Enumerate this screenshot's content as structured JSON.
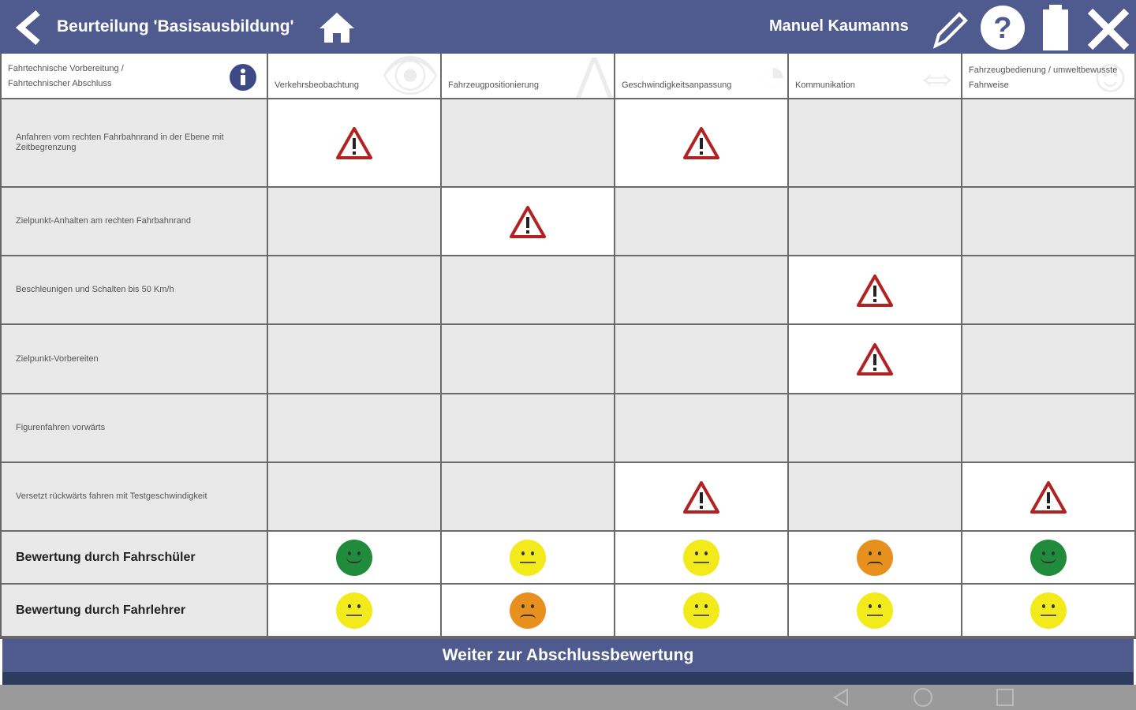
{
  "header": {
    "title": "Beurteilung 'Basisausbildung'",
    "user": "Manuel Kaumanns",
    "icons": [
      "back-icon",
      "home-icon",
      "pencil-icon",
      "help-icon",
      "battery-icon",
      "close-icon"
    ]
  },
  "table": {
    "corner_label": "Fahrtechnische Vorbereitung / Fahrtechnischer Abschluss",
    "columns": [
      "Verkehrsbeobachtung",
      "Fahrzeugpositionierung",
      "Geschwindigkeitsanpassung",
      "Kommunikation",
      "Fahrzeugbedienung / umweltbewusste Fahrweise"
    ],
    "rows": [
      {
        "label": "Anfahren vom rechten Fahrbahnrand in der Ebene mit Zeitbegrenzung",
        "cells": [
          "warning",
          "",
          "warning",
          "",
          ""
        ]
      },
      {
        "label": "Zielpunkt-Anhalten am rechten Fahrbahnrand",
        "cells": [
          "",
          "warning",
          "",
          "",
          ""
        ]
      },
      {
        "label": "Beschleunigen und Schalten bis 50 Km/h",
        "cells": [
          "",
          "",
          "",
          "warning",
          ""
        ]
      },
      {
        "label": "Zielpunkt-Vorbereiten",
        "cells": [
          "",
          "",
          "",
          "warning",
          ""
        ]
      },
      {
        "label": "Figurenfahren vorwärts",
        "cells": [
          "",
          "",
          "",
          "",
          ""
        ]
      },
      {
        "label": "Versetzt rückwärts fahren mit Testgeschwindigkeit",
        "cells": [
          "",
          "",
          "warning",
          "",
          "warning"
        ]
      }
    ],
    "ratings": [
      {
        "label": "Bewertung durch Fahrschüler",
        "values": [
          "good",
          "neutral",
          "neutral",
          "bad",
          "good"
        ]
      },
      {
        "label": "Bewertung durch Fahrlehrer",
        "values": [
          "neutral",
          "bad",
          "neutral",
          "neutral",
          "neutral"
        ]
      }
    ]
  },
  "colors": {
    "good": "#1f8b3b",
    "neutral": "#f2ea1a",
    "bad": "#e8901e",
    "warning": "#b22222",
    "header": "#4f5b8f"
  },
  "footer": {
    "button": "Weiter zur Abschlussbewertung"
  }
}
